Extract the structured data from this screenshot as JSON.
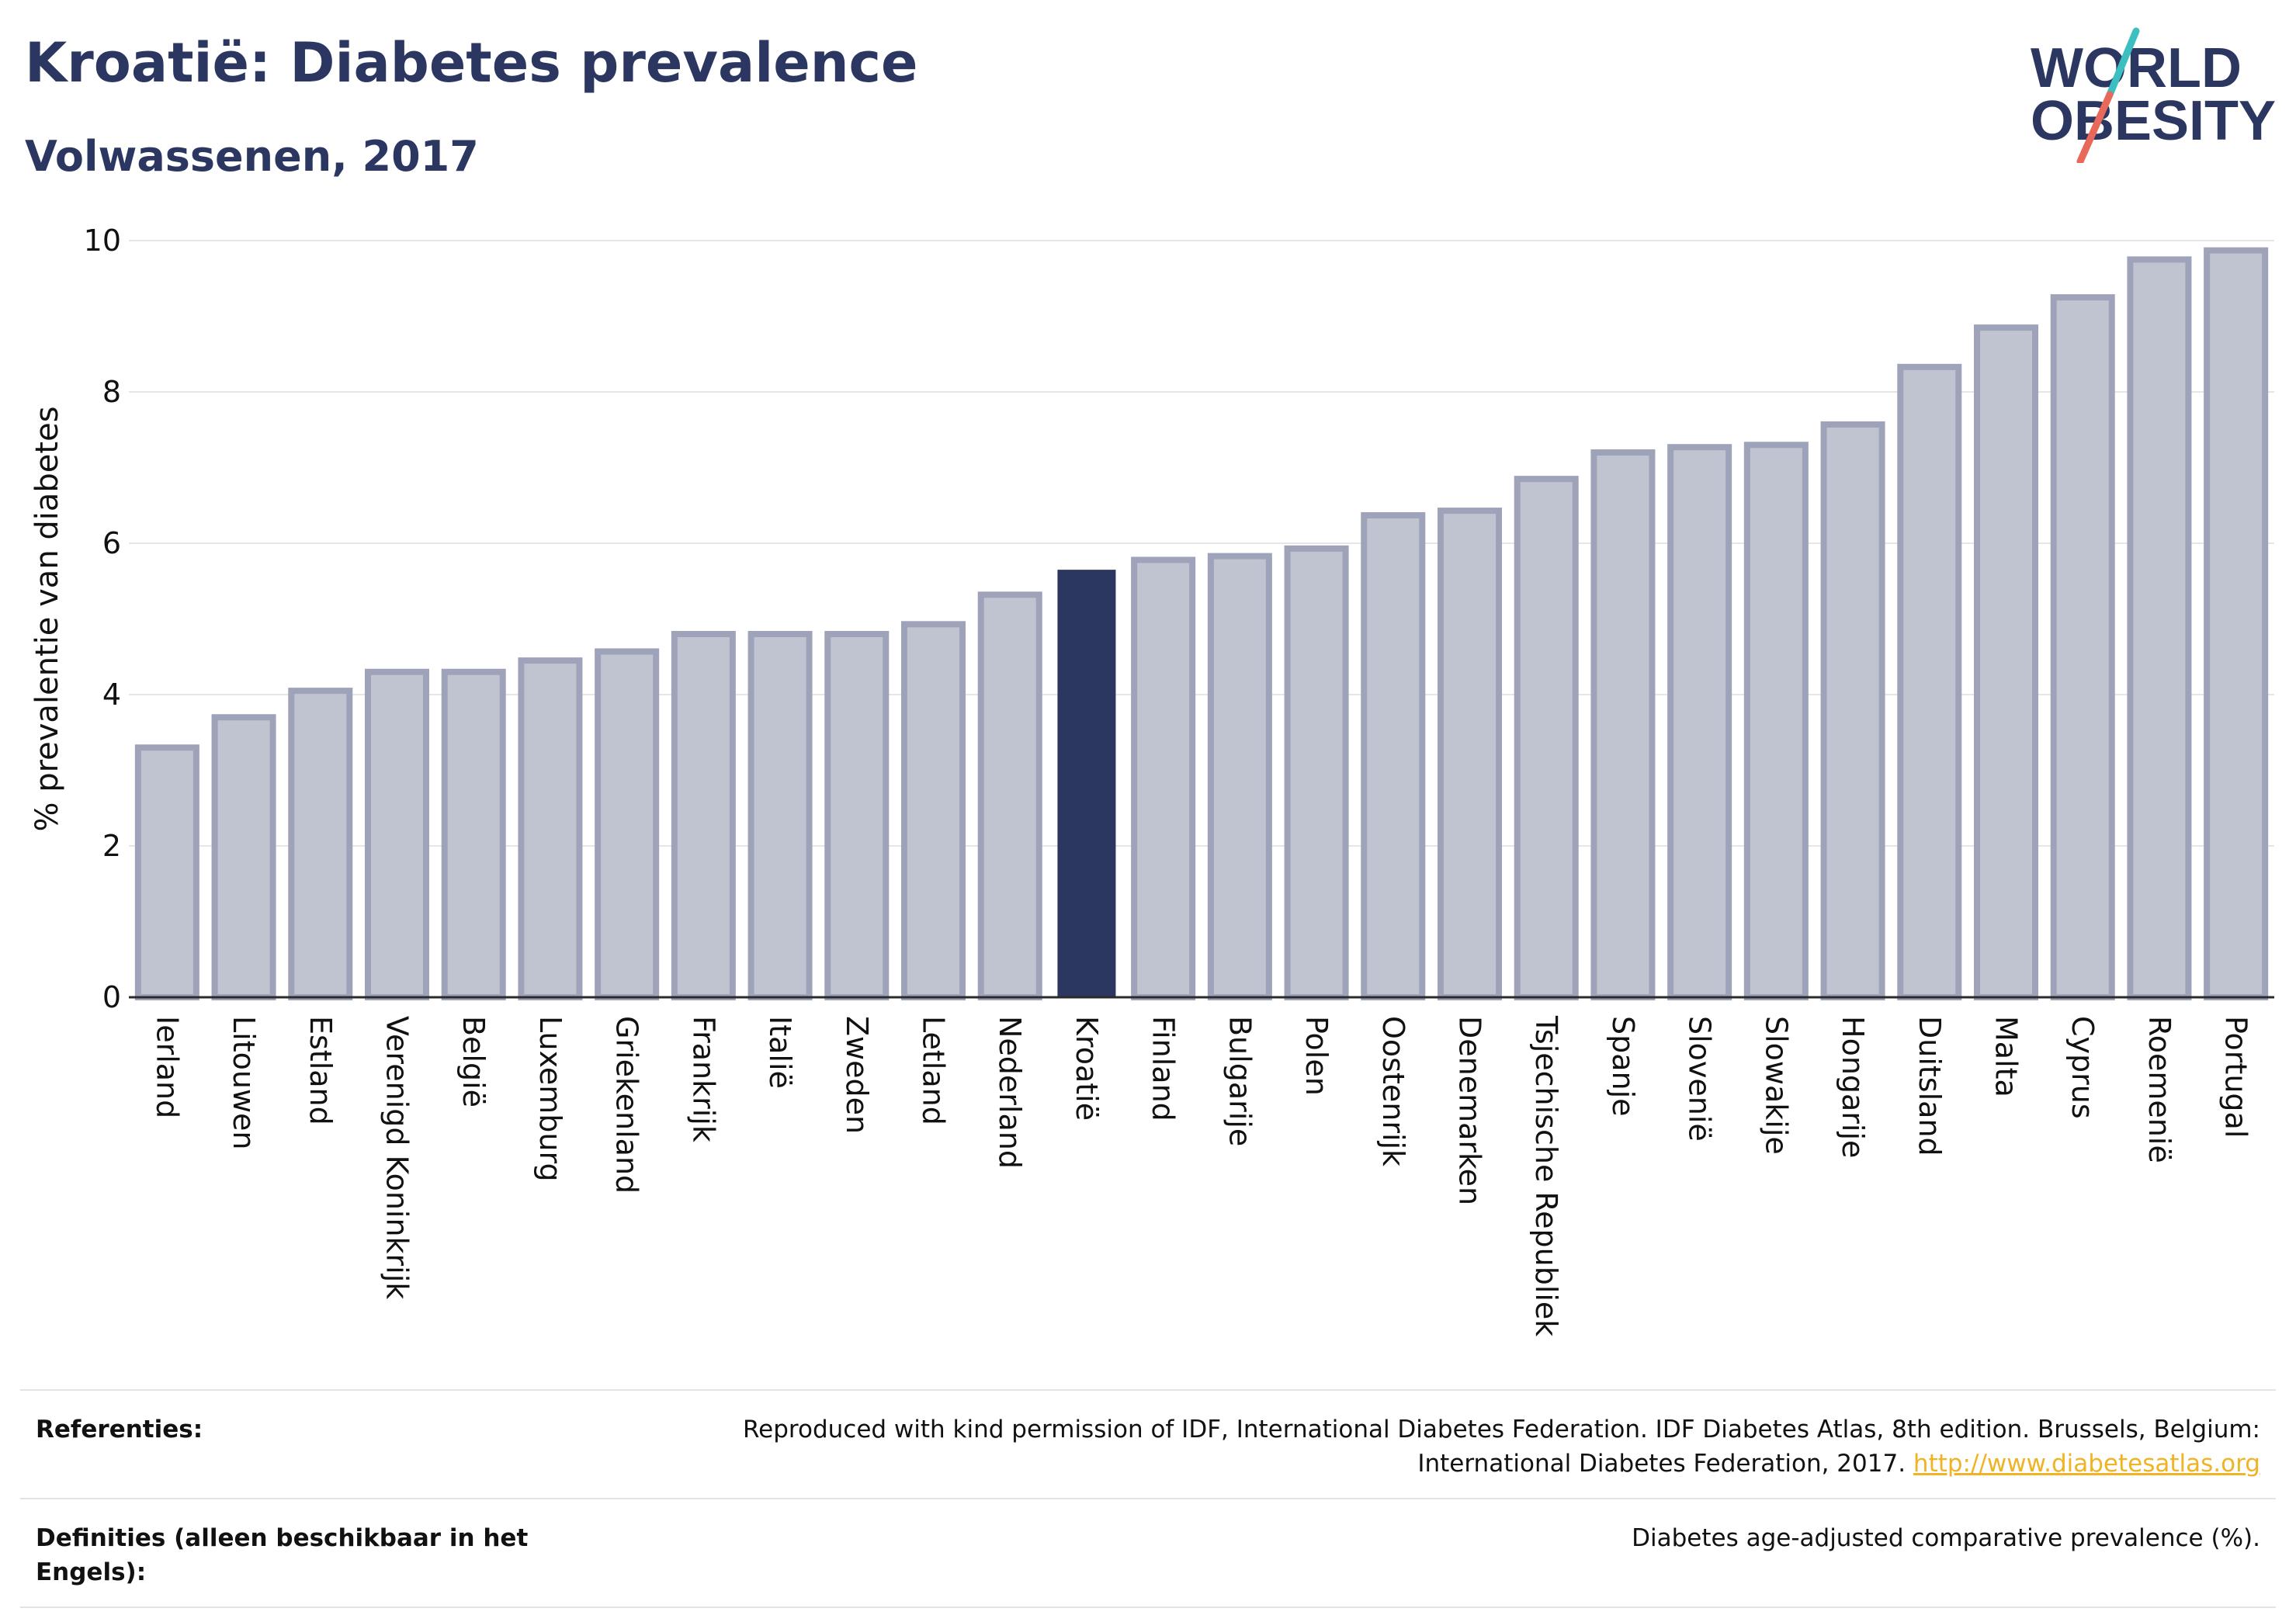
{
  "header": {
    "title": "Kroatië: Diabetes prevalence",
    "subtitle": "Volwassenen, 2017"
  },
  "logo": {
    "line1": "WORLD",
    "line2": "OBESITY",
    "colors": {
      "text": "#2b3661",
      "slash_top": "#3bbfc0",
      "slash_bottom": "#e8685a"
    }
  },
  "chart_data": {
    "type": "bar",
    "title": "Kroatië: Diabetes prevalence",
    "subtitle": "Volwassenen, 2017",
    "xlabel": "",
    "ylabel": "% prevalentie van diabetes",
    "ylim": [
      0,
      10
    ],
    "yticks": [
      0,
      2,
      4,
      6,
      8,
      10
    ],
    "grid": true,
    "highlight": "Kroatië",
    "colors": {
      "default_fill": "#c0c3d0",
      "default_stroke": "#9ea3ba",
      "highlight": "#2b3661"
    },
    "categories": [
      "Ierland",
      "Litouwen",
      "Estland",
      "Verenigd Koninkrijk",
      "België",
      "Luxemburg",
      "Griekenland",
      "Frankrijk",
      "Italië",
      "Zweden",
      "Letland",
      "Nederland",
      "Kroatië",
      "Finland",
      "Bulgarije",
      "Polen",
      "Oostenrijk",
      "Denemarken",
      "Tsjechische Republiek",
      "Spanje",
      "Slovenië",
      "Slowakije",
      "Hongarije",
      "Duitsland",
      "Malta",
      "Cyprus",
      "Roemenië",
      "Portugal"
    ],
    "values": [
      3.3,
      3.7,
      4.05,
      4.3,
      4.3,
      4.45,
      4.57,
      4.8,
      4.8,
      4.8,
      4.93,
      5.32,
      5.65,
      5.78,
      5.83,
      5.93,
      6.37,
      6.43,
      6.85,
      7.2,
      7.27,
      7.3,
      7.57,
      8.33,
      8.85,
      9.25,
      9.75,
      9.87
    ]
  },
  "footer": {
    "references": {
      "label": "Referenties:",
      "text": "Reproduced with kind permission of IDF, International Diabetes Federation. IDF Diabetes Atlas, 8th edition. Brussels, Belgium: International Diabetes Federation, 2017.",
      "link": "http://www.diabetesatlas.org"
    },
    "definitions": {
      "label": "Definities (alleen beschikbaar in het Engels):",
      "text": "Diabetes age-adjusted comparative prevalence (%)."
    }
  }
}
